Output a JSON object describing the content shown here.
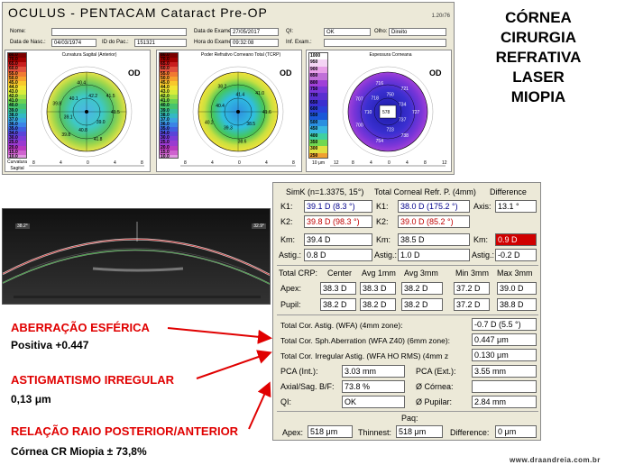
{
  "header": {
    "title": "OCULUS - PENTACAM Cataract Pre-OP",
    "version": "1.20r76"
  },
  "patient": {
    "name_label": "Nome:",
    "name_value": "",
    "dob_label": "Data de Nasc.:",
    "dob_value": "04/03/1974",
    "id_label": "ID do Pac.:",
    "id_value": "151321",
    "exam_date_label": "Data de Exame:",
    "exam_date_value": "27/05/2017",
    "exam_time_label": "Hora do Exame:",
    "exam_time_value": "09:32:08",
    "qi_label": "QI:",
    "qi_value": "OK",
    "eye_label": "Olho:",
    "eye_value": "Direito",
    "inf_label": "Inf. Exam.:",
    "inf_value": ""
  },
  "maps": [
    {
      "title": "Curvatura Sagital (Anterior)",
      "eye": "OD",
      "scale_label": "Curvatura",
      "scale_unit": "Sagital",
      "scale": [
        "80.0",
        "70.0",
        "65.0",
        "60.0",
        "55.0",
        "50.0",
        "45.0",
        "44.0",
        "43.0",
        "42.0",
        "41.0",
        "40.0",
        "39.0",
        "38.0",
        "37.0",
        "36.0",
        "35.0",
        "34.0",
        "30.0",
        "25.0",
        "20.0",
        "15.0",
        "10.0"
      ],
      "axis": [
        "8",
        "4",
        "0",
        "4",
        "8"
      ],
      "values": [
        "41.5",
        "39.0",
        "41.8",
        "40.8",
        "39.8",
        "39.1",
        "39.8",
        "40.1",
        "40.4",
        "42.2",
        "41.5"
      ]
    },
    {
      "title": "Poder Refrativo Corneano Total (TCRP)",
      "eye": "OD",
      "scale_label": "",
      "scale_unit": "",
      "scale": [
        "80.0",
        "70.0",
        "65.0",
        "60.0",
        "55.0",
        "50.0",
        "45.0",
        "44.0",
        "43.0",
        "42.0",
        "41.0",
        "40.0",
        "39.0",
        "38.0",
        "37.0",
        "36.0",
        "35.0",
        "34.0",
        "30.0",
        "25.0",
        "20.0",
        "15.0",
        "10.0"
      ],
      "axis": [
        "8",
        "4",
        "0",
        "4",
        "8"
      ],
      "values": [
        "41.6",
        "38.5",
        "38.6",
        "39.3",
        "40.2",
        "40.4",
        "38.2",
        "41.4",
        "41.0"
      ]
    },
    {
      "title": "Espessura Corneana",
      "eye": "OD",
      "scale_label": "10 μm",
      "scale_unit": "",
      "scale": [
        "1000",
        "950",
        "900",
        "850",
        "800",
        "750",
        "700",
        "650",
        "600",
        "550",
        "500",
        "450",
        "400",
        "350",
        "300",
        "250"
      ],
      "axis": [
        "12",
        "8",
        "4",
        "0",
        "4",
        "8",
        "12"
      ],
      "values": [
        "727",
        "737",
        "738",
        "723",
        "754",
        "578",
        "700",
        "710",
        "707",
        "718",
        "716",
        "750",
        "721",
        "734"
      ]
    }
  ],
  "compass": {
    "top": "90°",
    "bottom": "270°",
    "left_top": "135°",
    "right_top": "45°",
    "left_bottom": "225°",
    "right_bottom": "315°",
    "left": "180",
    "right": "0°"
  },
  "right_title": [
    "CÓRNEA",
    "CIRURGIA",
    "REFRATIVA",
    "LASER",
    "MIOPIA"
  ],
  "scheimpflug": {
    "left_label": "38.2°",
    "right_label": "32.9°"
  },
  "simk": {
    "title": "SimK (n=1.3375, 15°)",
    "tcrp_title": "Total Corneal Refr. P. (4mm)",
    "diff_title": "Difference",
    "k1_label": "K1:",
    "k1_value": "39.1 D (8.3 °)",
    "k2_label": "K2:",
    "k2_value": "39.8 D (98.3 °)",
    "km_label": "Km:",
    "km_value": "39.4 D",
    "astig_label": "Astig.:",
    "astig_value": "0.8 D",
    "tk1_label": "K1:",
    "tk1_value": "38.0 D (175.2 °)",
    "tk2_label": "K2:",
    "tk2_value": "39.0 D (85.2 °)",
    "tkm_label": "Km:",
    "tkm_value": "38.5 D",
    "tastig_label": "Astig.:",
    "tastig_value": "1.0 D",
    "axis_label": "Axis:",
    "axis_value": "13.1 °",
    "dkm_label": "Km:",
    "dkm_value": "0.9 D",
    "dastig_label": "Astig.:",
    "dastig_value": "-0.2 D"
  },
  "crp": {
    "title": "Total CRP:",
    "cols": [
      "Center",
      "Avg 1mm",
      "Avg 3mm",
      "Min 3mm",
      "Max 3mm"
    ],
    "apex_label": "Apex:",
    "apex": [
      "38.3 D",
      "38.3 D",
      "38.2 D",
      "37.2 D",
      "39.0 D"
    ],
    "pupil_label": "Pupil:",
    "pupil": [
      "38.2 D",
      "38.2 D",
      "38.2 D",
      "37.2 D",
      "38.8 D"
    ]
  },
  "wfa": {
    "astig_label": "Total Cor. Astig. (WFA) (4mm zone):",
    "astig_value": "-0.7 D (5.5 °)",
    "sph_label": "Total Cor. Sph.Aberration (WFA Z40) (6mm zone):",
    "sph_value": "0.447 μm",
    "irr_label": "Total Cor. Irregular Astig. (WFA HO RMS) (4mm z",
    "irr_value": "0.130 μm"
  },
  "misc": {
    "pca_int_label": "PCA (Int.):",
    "pca_int_value": "3.03 mm",
    "pca_ext_label": "PCA (Ext.):",
    "pca_ext_value": "3.55 mm",
    "bf_label": "Axial/Sag. B/F:",
    "bf_value": "73.8 %",
    "cornea_label": "Ø Córnea:",
    "cornea_value": "",
    "qi_label": "QI:",
    "qi_value": "OK",
    "pupil_label": "Ø Pupilar:",
    "pupil_value": "2.84 mm"
  },
  "paq": {
    "title": "Paq:",
    "apex_label": "Apex:",
    "apex_value": "518 μm",
    "thin_label": "Thinnest:",
    "thin_value": "518 μm",
    "diff_label": "Difference:",
    "diff_value": "0 μm"
  },
  "annotations": {
    "sph_title": "ABERRAÇÃO ESFÉRICA",
    "sph_value": "Positiva  +0.447",
    "irr_title": "ASTIGMATISMO IRREGULAR",
    "irr_value": "0,13 μm",
    "ratio_title": "RELAÇÃO RAIO POSTERIOR/ANTERIOR",
    "ratio_value": "Córnea CR Miopia ± 73,8%"
  },
  "footer": "www.draandreia.com.br",
  "colors": {
    "red_accent": "#e00000",
    "window_bg": "#ece9d8",
    "diff_alert": "#d00000"
  }
}
